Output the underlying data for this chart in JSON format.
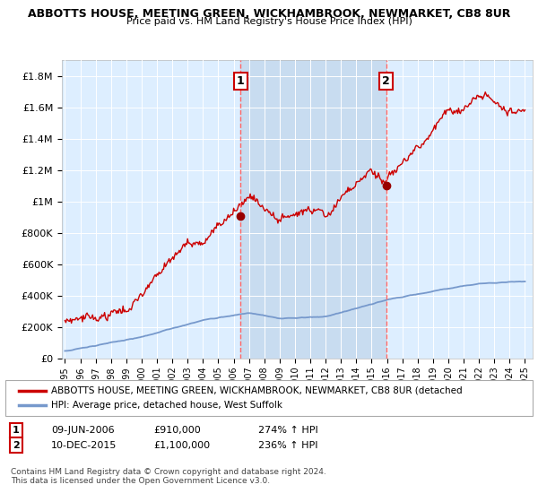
{
  "title": "ABBOTTS HOUSE, MEETING GREEN, WICKHAMBROOK, NEWMARKET, CB8 8UR",
  "subtitle": "Price paid vs. HM Land Registry's House Price Index (HPI)",
  "ylim": [
    0,
    1900000
  ],
  "yticks": [
    0,
    200000,
    400000,
    600000,
    800000,
    1000000,
    1200000,
    1400000,
    1600000,
    1800000
  ],
  "ytick_labels": [
    "£0",
    "£200K",
    "£400K",
    "£600K",
    "£800K",
    "£1M",
    "£1.2M",
    "£1.4M",
    "£1.6M",
    "£1.8M"
  ],
  "xlim_start": 1994.8,
  "xlim_end": 2025.5,
  "background_color": "#ffffff",
  "plot_bg_color": "#ddeeff",
  "shade_color": "#c8dcf0",
  "grid_color": "#ffffff",
  "sale1_x": 2006.44,
  "sale1_y": 910000,
  "sale2_x": 2015.94,
  "sale2_y": 1100000,
  "sale_marker_color": "#990000",
  "vline_color": "#ff6666",
  "legend_house_label": "ABBOTTS HOUSE, MEETING GREEN, WICKHAMBROOK, NEWMARKET, CB8 8UR (detached",
  "legend_hpi_label": "HPI: Average price, detached house, West Suffolk",
  "table_row1": [
    "1",
    "09-JUN-2006",
    "£910,000",
    "274% ↑ HPI"
  ],
  "table_row2": [
    "2",
    "10-DEC-2015",
    "£1,100,000",
    "236% ↑ HPI"
  ],
  "footnote": "Contains HM Land Registry data © Crown copyright and database right 2024.\nThis data is licensed under the Open Government Licence v3.0.",
  "house_line_color": "#cc0000",
  "hpi_line_color": "#7799cc"
}
